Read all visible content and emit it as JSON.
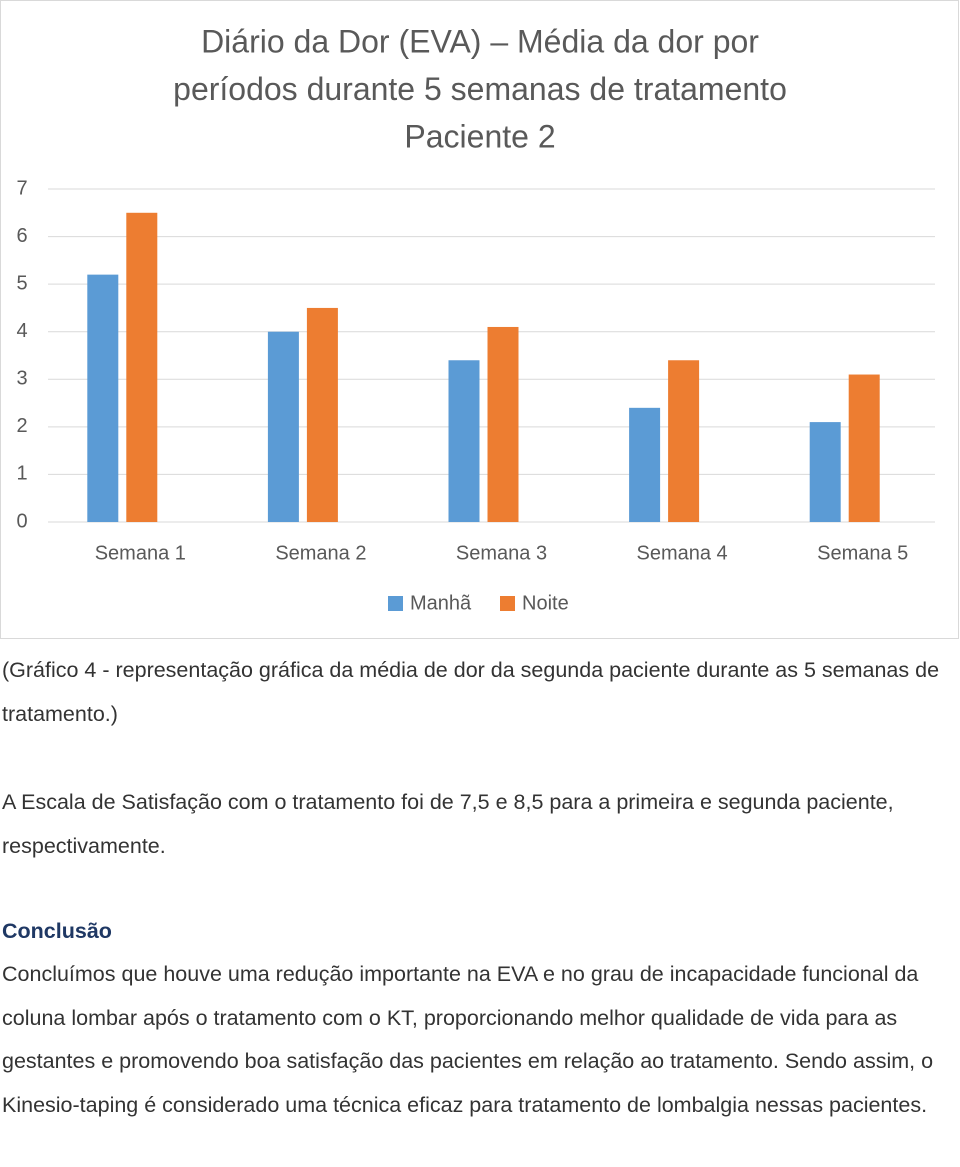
{
  "chart_data": {
    "type": "bar",
    "title": [
      "Diário da Dor (EVA) – Média da dor por",
      "períodos durante 5 semanas de tratamento",
      "Paciente 2"
    ],
    "categories": [
      "Semana 1",
      "Semana 2",
      "Semana 3",
      "Semana 4",
      "Semana 5"
    ],
    "series": [
      {
        "name": "Manhã",
        "color": "#5b9bd5",
        "values": [
          5.2,
          4.0,
          3.4,
          2.4,
          2.1
        ]
      },
      {
        "name": "Noite",
        "color": "#ed7d31",
        "values": [
          6.5,
          4.5,
          4.1,
          3.4,
          3.1
        ]
      }
    ],
    "ylim": [
      0,
      7
    ],
    "yticks": [
      0,
      1,
      2,
      3,
      4,
      5,
      6,
      7
    ],
    "grid": true,
    "legend": "bottom"
  },
  "caption": "(Gráfico 4 - representação gráfica da média de dor da segunda paciente durante as 5 semanas de tratamento.)",
  "paragraph": "A Escala de Satisfação com o tratamento foi de 7,5 e 8,5 para a primeira e segunda paciente, respectivamente.",
  "conclusion": {
    "heading": "Conclusão",
    "text": "Concluímos que houve uma redução importante na EVA e no grau de incapacidade funcional da coluna lombar após o tratamento com o KT, proporcionando melhor qualidade de vida para as gestantes e promovendo boa satisfação das pacientes em relação ao tratamento. Sendo assim, o Kinesio-taping é considerado uma técnica eficaz para tratamento de lombalgia nessas pacientes."
  }
}
